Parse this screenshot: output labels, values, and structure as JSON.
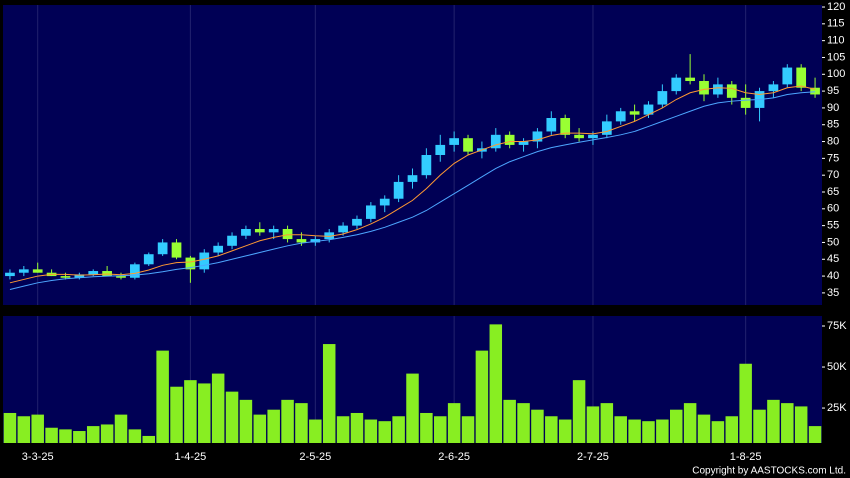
{
  "chart_data": [
    {
      "type": "candlestick",
      "open": [
        40,
        41,
        42,
        41,
        40,
        39.5,
        40.5,
        41.5,
        40,
        39.5,
        43.5,
        46.5,
        50,
        45.5,
        42,
        47,
        49,
        52,
        54,
        53,
        54,
        51,
        50,
        51,
        53,
        55,
        57,
        61,
        63,
        68,
        70,
        76,
        79,
        81,
        77,
        78,
        82,
        79,
        80,
        83,
        87,
        82,
        81,
        82,
        86,
        89,
        88,
        91,
        95,
        99,
        98,
        94,
        97,
        93,
        90,
        95,
        97,
        102,
        96
      ],
      "high": [
        42,
        43,
        44,
        42,
        41,
        41,
        42,
        43,
        41,
        44,
        47,
        51,
        51,
        46,
        48,
        50,
        53,
        55,
        56,
        55,
        55,
        53,
        52,
        54,
        56,
        58,
        62,
        64,
        70,
        72,
        78,
        82,
        83,
        82,
        80,
        84,
        83,
        81,
        84,
        89,
        88,
        84,
        83,
        88,
        90,
        91,
        92,
        97,
        100,
        106,
        100,
        99,
        98,
        97,
        96,
        98,
        103,
        103,
        99
      ],
      "low": [
        39,
        40,
        41,
        40,
        39,
        39,
        40,
        40,
        39,
        39,
        43,
        46,
        45,
        38,
        41,
        46,
        48,
        51,
        52,
        51,
        50,
        49,
        49,
        50,
        52,
        54,
        56,
        59,
        62,
        66,
        69,
        74,
        77,
        76,
        75,
        77,
        78,
        77,
        78,
        82,
        81,
        80,
        79,
        81,
        85,
        86,
        87,
        90,
        94,
        97,
        92,
        93,
        91,
        88,
        86,
        93,
        96,
        95,
        93
      ],
      "close": [
        41,
        42,
        41,
        40,
        39.5,
        40.5,
        41.5,
        40,
        39.5,
        43.5,
        46.5,
        50,
        45.5,
        42,
        47,
        49,
        52,
        54,
        53,
        54,
        51,
        50,
        51,
        53,
        55,
        57,
        61,
        63,
        68,
        70,
        76,
        79,
        81,
        77,
        78,
        82,
        79,
        80,
        83,
        87,
        82,
        81,
        82,
        86,
        89,
        88,
        91,
        95,
        99,
        98,
        94,
        97,
        93,
        90,
        95,
        97,
        102,
        96,
        94
      ],
      "up_color": "#33ccff",
      "down_color": "#99ff33",
      "series": [
        {
          "color": "#ff9933",
          "values": [
            38,
            39,
            40,
            40.5,
            40.5,
            40.3,
            40.4,
            40.6,
            40.4,
            40.8,
            41.8,
            43.2,
            44,
            44.2,
            45,
            46,
            47.5,
            49,
            50.5,
            51.5,
            52.3,
            52.3,
            52,
            51.8,
            52.5,
            53.8,
            55.5,
            57.5,
            60,
            62.5,
            66,
            70,
            73.5,
            76,
            77.5,
            79,
            80,
            80,
            80.5,
            81.8,
            82.5,
            82.5,
            82.3,
            83,
            84.5,
            86,
            88,
            90,
            92.5,
            94.5,
            95.5,
            96,
            95.8,
            94.5,
            94,
            94.5,
            96,
            96.5,
            95.5
          ]
        },
        {
          "color": "#4da6ff",
          "values": [
            36,
            37,
            38,
            38.7,
            39.2,
            39.5,
            39.8,
            40,
            40.1,
            40.3,
            40.7,
            41.3,
            42,
            42.5,
            43.2,
            44,
            45,
            46,
            47,
            48,
            49,
            49.8,
            50.3,
            50.8,
            51.5,
            52.3,
            53.3,
            54.5,
            56,
            57.5,
            59.5,
            62,
            64.5,
            67,
            69.5,
            72,
            74,
            75.5,
            77,
            78.2,
            79,
            79.8,
            80.5,
            81.2,
            82,
            83,
            84.5,
            86,
            87.5,
            89,
            90.5,
            91.5,
            92,
            92.3,
            92.5,
            93,
            94,
            94.5,
            94.8
          ]
        }
      ],
      "ylim": [
        31.4,
        120.6
      ],
      "yticks": [
        35,
        40,
        45,
        50,
        55,
        60,
        65,
        70,
        75,
        80,
        85,
        90,
        95,
        100,
        105,
        110,
        115,
        120
      ]
    },
    {
      "type": "bar",
      "categories": [
        null,
        null,
        "3-3-25",
        null,
        null,
        null,
        null,
        null,
        null,
        null,
        null,
        null,
        null,
        "1-4-25",
        null,
        null,
        null,
        null,
        null,
        null,
        null,
        null,
        "2-5-25",
        null,
        null,
        null,
        null,
        null,
        null,
        null,
        null,
        null,
        "2-6-25",
        null,
        null,
        null,
        null,
        null,
        null,
        null,
        null,
        null,
        "2-7-25",
        null,
        null,
        null,
        null,
        null,
        null,
        null,
        null,
        null,
        null,
        "1-8-25",
        null,
        null,
        null,
        null,
        null
      ],
      "values": [
        22000,
        20000,
        21000,
        13000,
        12000,
        11000,
        14000,
        15000,
        21000,
        12000,
        8000,
        60000,
        38000,
        42000,
        40000,
        46000,
        35000,
        30000,
        21000,
        24000,
        30000,
        28000,
        18000,
        64000,
        20000,
        22000,
        18000,
        17000,
        20000,
        46000,
        22000,
        20000,
        28000,
        20000,
        60000,
        76000,
        30000,
        28000,
        24000,
        20000,
        18000,
        42000,
        26000,
        28000,
        20000,
        18000,
        17000,
        18000,
        24000,
        28000,
        21000,
        17000,
        20000,
        52000,
        24000,
        30000,
        28000,
        26000,
        14000
      ],
      "color": "#88ee22",
      "ylim": [
        3700,
        81100
      ],
      "yticks": [
        {
          "value": 25000,
          "label": "25K"
        },
        {
          "value": 50000,
          "label": "50K"
        },
        {
          "value": 75000,
          "label": "75K"
        }
      ]
    }
  ],
  "copyright": "Copyright by AASTOCKS.com Ltd."
}
